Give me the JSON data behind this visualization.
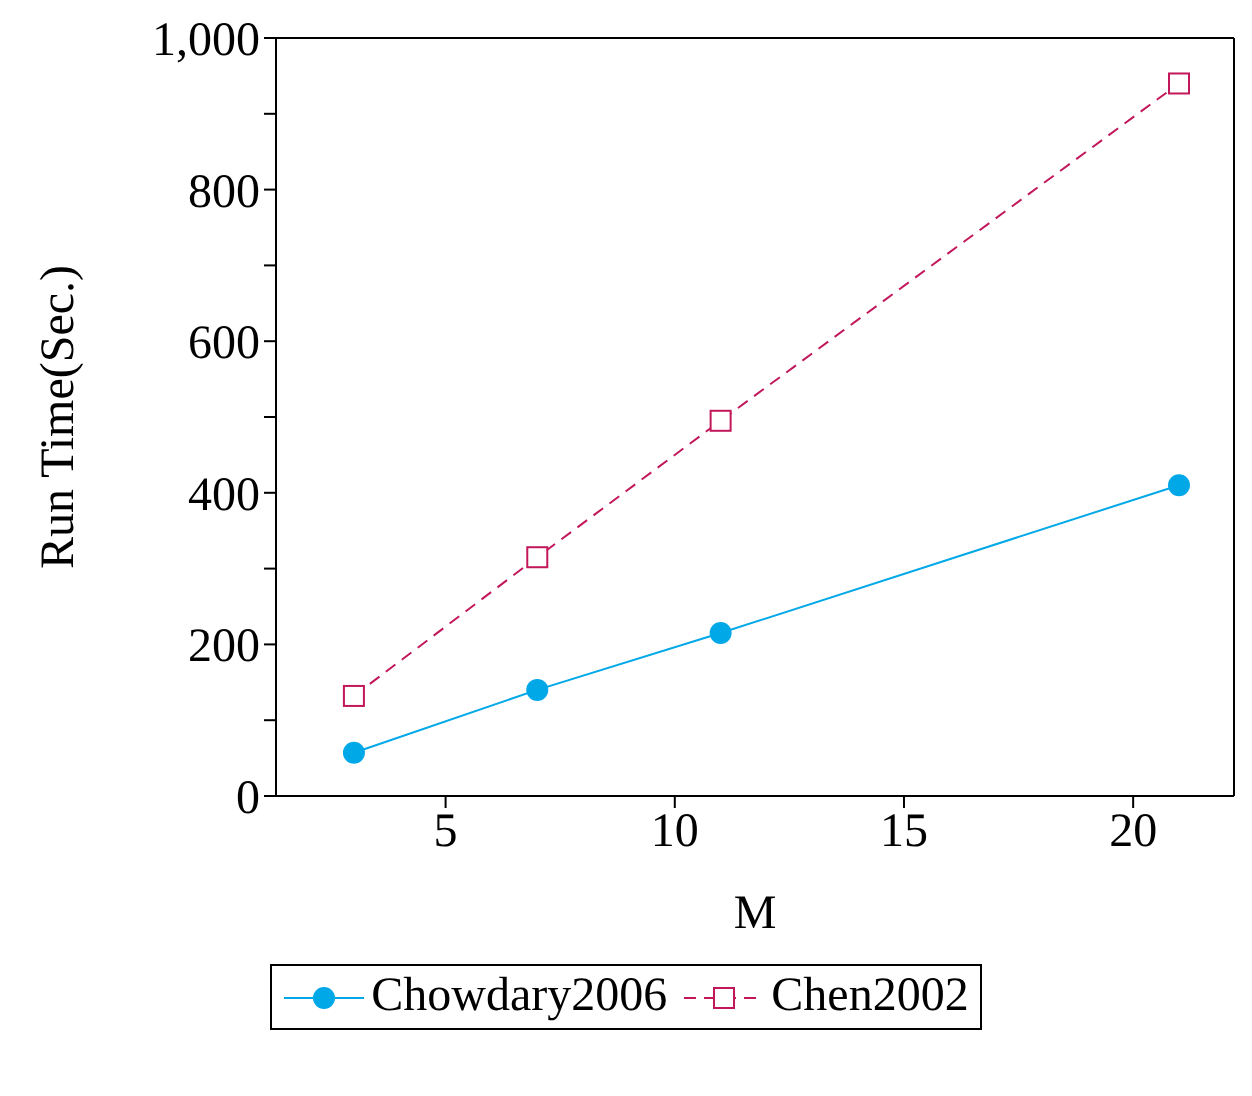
{
  "chart_data": {
    "type": "line",
    "xlabel": "M",
    "ylabel": "Run Time(Sec.)",
    "x": [
      3,
      7,
      11,
      21
    ],
    "series": [
      {
        "name": "Chowdary2006",
        "color": "#00a8e8",
        "values": [
          57,
          140,
          215,
          410
        ],
        "marker": "circle",
        "line_style": "solid"
      },
      {
        "name": "Chen2002",
        "color": "#c2185b",
        "values": [
          132,
          315,
          495,
          940
        ],
        "marker": "square",
        "line_style": "dashed"
      }
    ],
    "xlim": [
      1.3,
      22.2
    ],
    "xticks": [
      5,
      10,
      15,
      20
    ],
    "ylim": [
      0,
      1000
    ],
    "yticks": [
      0,
      {
        "value": 100,
        "label": null
      },
      200,
      {
        "value": 300,
        "label": null
      },
      400,
      {
        "value": 500,
        "label": null
      },
      600,
      {
        "value": 700,
        "label": null
      },
      800,
      {
        "value": 900,
        "label": null
      },
      {
        "value": 1000,
        "label": "1,000"
      }
    ],
    "grid": false,
    "legend": "bottom"
  }
}
